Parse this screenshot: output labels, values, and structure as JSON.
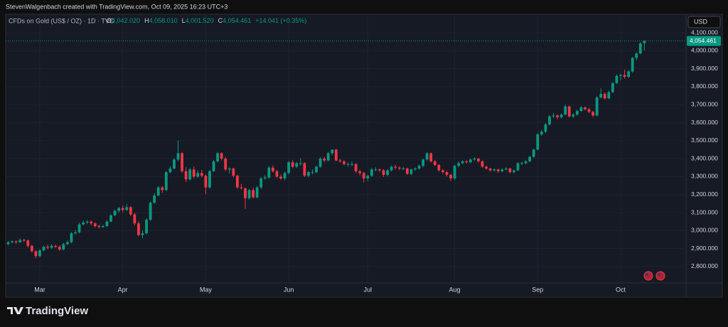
{
  "header": {
    "credit": "StevenWalgenbach created with TradingView.com, Oct 09, 2025 16:23 UTC+3"
  },
  "legend": {
    "symbol": "CFDs on Gold (US$ / OZ) · 1D · TVC",
    "ohlc": [
      {
        "label": "O",
        "value": "4,042.020"
      },
      {
        "label": "H",
        "value": "4,058.010"
      },
      {
        "label": "L",
        "value": "4,001.520"
      },
      {
        "label": "C",
        "value": "4,054.461"
      }
    ],
    "change": "+14.041 (+0.35%)"
  },
  "currency": "USD",
  "last_price_label": "4,054.461",
  "footer": {
    "brand": "TradingView"
  },
  "chart_data": {
    "type": "candlestick",
    "up_color": "#089981",
    "down_color": "#f23645",
    "grid": true,
    "ylim": [
      2709,
      4203
    ],
    "yticks": [
      {
        "value": 2800,
        "label": "2,800.000"
      },
      {
        "value": 2900,
        "label": "2,900.000"
      },
      {
        "value": 3000,
        "label": "3,000.000"
      },
      {
        "value": 3100,
        "label": "3,100.000"
      },
      {
        "value": 3200,
        "label": "3,200.000"
      },
      {
        "value": 3300,
        "label": "3,300.000"
      },
      {
        "value": 3400,
        "label": "3,400.000"
      },
      {
        "value": 3500,
        "label": "3,500.000"
      },
      {
        "value": 3600,
        "label": "3,600.000"
      },
      {
        "value": 3700,
        "label": "3,700.000"
      },
      {
        "value": 3800,
        "label": "3,800.000"
      },
      {
        "value": 3900,
        "label": "3,900.000"
      },
      {
        "value": 4000,
        "label": "4,000.000"
      },
      {
        "value": 4100,
        "label": "4,100.000"
      }
    ],
    "categories": [
      null,
      null,
      null,
      null,
      null,
      null,
      null,
      null,
      "Mar",
      null,
      null,
      null,
      null,
      null,
      null,
      null,
      null,
      null,
      null,
      null,
      null,
      null,
      null,
      null,
      null,
      null,
      null,
      null,
      null,
      "Apr",
      null,
      null,
      null,
      null,
      null,
      null,
      null,
      null,
      null,
      null,
      null,
      null,
      null,
      null,
      null,
      null,
      null,
      null,
      null,
      null,
      "May",
      null,
      null,
      null,
      null,
      null,
      null,
      null,
      null,
      null,
      null,
      null,
      null,
      null,
      null,
      null,
      null,
      null,
      null,
      null,
      null,
      "Jun",
      null,
      null,
      null,
      null,
      null,
      null,
      null,
      null,
      null,
      null,
      null,
      null,
      null,
      null,
      null,
      null,
      null,
      null,
      null,
      "Jul",
      null,
      null,
      null,
      null,
      null,
      null,
      null,
      null,
      null,
      null,
      null,
      null,
      null,
      null,
      null,
      null,
      null,
      null,
      null,
      null,
      null,
      "Aug",
      null,
      null,
      null,
      null,
      null,
      null,
      null,
      null,
      null,
      null,
      null,
      null,
      null,
      null,
      null,
      null,
      null,
      null,
      null,
      null,
      "Sep",
      null,
      null,
      null,
      null,
      null,
      null,
      null,
      null,
      null,
      null,
      null,
      null,
      null,
      null,
      null,
      null,
      null,
      null,
      null,
      null,
      "Oct",
      null,
      null,
      null,
      null,
      null,
      null
    ],
    "candles": [
      [
        2925,
        2942,
        2918,
        2935
      ],
      [
        2935,
        2946,
        2928,
        2940
      ],
      [
        2940,
        2945,
        2926,
        2935
      ],
      [
        2935,
        2956,
        2932,
        2948
      ],
      [
        2948,
        2954,
        2936,
        2945
      ],
      [
        2945,
        2950,
        2905,
        2915
      ],
      [
        2915,
        2922,
        2878,
        2885
      ],
      [
        2885,
        2892,
        2846,
        2858
      ],
      [
        2858,
        2896,
        2852,
        2890
      ],
      [
        2890,
        2918,
        2884,
        2910
      ],
      [
        2910,
        2922,
        2896,
        2905
      ],
      [
        2905,
        2925,
        2898,
        2915
      ],
      [
        2915,
        2922,
        2902,
        2910
      ],
      [
        2910,
        2918,
        2886,
        2895
      ],
      [
        2895,
        2932,
        2890,
        2925
      ],
      [
        2925,
        2945,
        2918,
        2935
      ],
      [
        2935,
        2992,
        2930,
        2985
      ],
      [
        2985,
        3004,
        2978,
        2990
      ],
      [
        2990,
        3045,
        2985,
        3035
      ],
      [
        3035,
        3057,
        3028,
        3045
      ],
      [
        3045,
        3058,
        3036,
        3050
      ],
      [
        3050,
        3056,
        3030,
        3040
      ],
      [
        3040,
        3046,
        3016,
        3025
      ],
      [
        3025,
        3034,
        3012,
        3020
      ],
      [
        3020,
        3032,
        3014,
        3025
      ],
      [
        3025,
        3058,
        3020,
        3050
      ],
      [
        3050,
        3092,
        3046,
        3085
      ],
      [
        3085,
        3118,
        3080,
        3110
      ],
      [
        3110,
        3132,
        3100,
        3125
      ],
      [
        3125,
        3140,
        3102,
        3115
      ],
      [
        3115,
        3148,
        3108,
        3130
      ],
      [
        3130,
        3136,
        3080,
        3090
      ],
      [
        3090,
        3098,
        3030,
        3040
      ],
      [
        3040,
        3052,
        2968,
        2975
      ],
      [
        2975,
        3000,
        2956,
        2985
      ],
      [
        2985,
        3068,
        2978,
        3060
      ],
      [
        3060,
        3162,
        3055,
        3155
      ],
      [
        3155,
        3208,
        3148,
        3195
      ],
      [
        3195,
        3248,
        3190,
        3240
      ],
      [
        3240,
        3248,
        3210,
        3225
      ],
      [
        3225,
        3332,
        3220,
        3325
      ],
      [
        3325,
        3358,
        3318,
        3345
      ],
      [
        3345,
        3402,
        3340,
        3395
      ],
      [
        3395,
        3500,
        3385,
        3430
      ],
      [
        3430,
        3438,
        3320,
        3330
      ],
      [
        3330,
        3352,
        3270,
        3285
      ],
      [
        3285,
        3350,
        3278,
        3340
      ],
      [
        3340,
        3356,
        3290,
        3300
      ],
      [
        3300,
        3335,
        3292,
        3320
      ],
      [
        3320,
        3338,
        3295,
        3305
      ],
      [
        3305,
        3312,
        3202,
        3240
      ],
      [
        3240,
        3338,
        3232,
        3330
      ],
      [
        3330,
        3392,
        3325,
        3385
      ],
      [
        3385,
        3438,
        3378,
        3430
      ],
      [
        3430,
        3436,
        3390,
        3400
      ],
      [
        3400,
        3410,
        3330,
        3340
      ],
      [
        3340,
        3352,
        3318,
        3345
      ],
      [
        3345,
        3350,
        3296,
        3305
      ],
      [
        3305,
        3312,
        3232,
        3240
      ],
      [
        3240,
        3260,
        3228,
        3235
      ],
      [
        3235,
        3240,
        3120,
        3180
      ],
      [
        3180,
        3232,
        3172,
        3225
      ],
      [
        3225,
        3238,
        3178,
        3185
      ],
      [
        3185,
        3248,
        3178,
        3240
      ],
      [
        3240,
        3298,
        3232,
        3290
      ],
      [
        3290,
        3308,
        3282,
        3295
      ],
      [
        3295,
        3358,
        3288,
        3350
      ],
      [
        3350,
        3362,
        3322,
        3330
      ],
      [
        3330,
        3338,
        3292,
        3300
      ],
      [
        3300,
        3312,
        3282,
        3290
      ],
      [
        3290,
        3328,
        3280,
        3320
      ],
      [
        3320,
        3388,
        3312,
        3380
      ],
      [
        3380,
        3392,
        3346,
        3355
      ],
      [
        3355,
        3382,
        3348,
        3375
      ],
      [
        3375,
        3402,
        3360,
        3375
      ],
      [
        3375,
        3380,
        3298,
        3305
      ],
      [
        3305,
        3332,
        3296,
        3325
      ],
      [
        3325,
        3340,
        3312,
        3325
      ],
      [
        3325,
        3362,
        3318,
        3355
      ],
      [
        3355,
        3408,
        3348,
        3400
      ],
      [
        3400,
        3410,
        3380,
        3390
      ],
      [
        3390,
        3438,
        3385,
        3430
      ],
      [
        3430,
        3452,
        3420,
        3450
      ],
      [
        3450,
        3455,
        3385,
        3390
      ],
      [
        3390,
        3400,
        3376,
        3385
      ],
      [
        3385,
        3392,
        3362,
        3370
      ],
      [
        3370,
        3378,
        3355,
        3370
      ],
      [
        3370,
        3385,
        3358,
        3370
      ],
      [
        3370,
        3376,
        3320,
        3330
      ],
      [
        3330,
        3338,
        3306,
        3320
      ],
      [
        3320,
        3326,
        3268,
        3290
      ],
      [
        3290,
        3312,
        3276,
        3305
      ],
      [
        3305,
        3348,
        3298,
        3340
      ],
      [
        3340,
        3352,
        3330,
        3340
      ],
      [
        3340,
        3346,
        3326,
        3335
      ],
      [
        3335,
        3342,
        3298,
        3310
      ],
      [
        3310,
        3342,
        3302,
        3335
      ],
      [
        3335,
        3362,
        3328,
        3355
      ],
      [
        3355,
        3365,
        3340,
        3350
      ],
      [
        3350,
        3358,
        3336,
        3345
      ],
      [
        3345,
        3354,
        3336,
        3345
      ],
      [
        3345,
        3350,
        3310,
        3315
      ],
      [
        3315,
        3346,
        3308,
        3340
      ],
      [
        3340,
        3352,
        3332,
        3345
      ],
      [
        3345,
        3368,
        3338,
        3360
      ],
      [
        3360,
        3400,
        3352,
        3395
      ],
      [
        3395,
        3438,
        3388,
        3430
      ],
      [
        3430,
        3434,
        3378,
        3385
      ],
      [
        3385,
        3392,
        3358,
        3365
      ],
      [
        3365,
        3370,
        3328,
        3335
      ],
      [
        3335,
        3342,
        3316,
        3325
      ],
      [
        3325,
        3332,
        3300,
        3310
      ],
      [
        3310,
        3316,
        3276,
        3290
      ],
      [
        3290,
        3366,
        3282,
        3360
      ],
      [
        3360,
        3384,
        3352,
        3375
      ],
      [
        3375,
        3392,
        3368,
        3385
      ],
      [
        3385,
        3392,
        3372,
        3380
      ],
      [
        3380,
        3400,
        3374,
        3395
      ],
      [
        3395,
        3408,
        3388,
        3400
      ],
      [
        3400,
        3404,
        3378,
        3385
      ],
      [
        3385,
        3390,
        3350,
        3355
      ],
      [
        3355,
        3362,
        3338,
        3345
      ],
      [
        3345,
        3350,
        3328,
        3335
      ],
      [
        3335,
        3346,
        3328,
        3340
      ],
      [
        3340,
        3344,
        3320,
        3330
      ],
      [
        3330,
        3346,
        3324,
        3340
      ],
      [
        3340,
        3352,
        3334,
        3345
      ],
      [
        3345,
        3350,
        3318,
        3325
      ],
      [
        3325,
        3340,
        3318,
        3335
      ],
      [
        3335,
        3380,
        3330,
        3375
      ],
      [
        3375,
        3384,
        3366,
        3375
      ],
      [
        3375,
        3392,
        3368,
        3385
      ],
      [
        3385,
        3416,
        3380,
        3410
      ],
      [
        3410,
        3456,
        3404,
        3450
      ],
      [
        3450,
        3542,
        3446,
        3535
      ],
      [
        3535,
        3560,
        3526,
        3550
      ],
      [
        3550,
        3598,
        3542,
        3590
      ],
      [
        3590,
        3642,
        3584,
        3635
      ],
      [
        3635,
        3655,
        3625,
        3640
      ],
      [
        3640,
        3648,
        3618,
        3630
      ],
      [
        3630,
        3652,
        3622,
        3645
      ],
      [
        3645,
        3700,
        3640,
        3690
      ],
      [
        3690,
        3696,
        3628,
        3635
      ],
      [
        3635,
        3652,
        3626,
        3645
      ],
      [
        3645,
        3672,
        3638,
        3665
      ],
      [
        3665,
        3692,
        3660,
        3685
      ],
      [
        3685,
        3690,
        3668,
        3675
      ],
      [
        3675,
        3682,
        3652,
        3660
      ],
      [
        3660,
        3666,
        3632,
        3640
      ],
      [
        3640,
        3748,
        3634,
        3740
      ],
      [
        3740,
        3790,
        3735,
        3760
      ],
      [
        3760,
        3768,
        3728,
        3735
      ],
      [
        3735,
        3778,
        3730,
        3770
      ],
      [
        3770,
        3826,
        3764,
        3820
      ],
      [
        3820,
        3868,
        3815,
        3860
      ],
      [
        3860,
        3872,
        3835,
        3865
      ],
      [
        3865,
        3895,
        3845,
        3855
      ],
      [
        3855,
        3892,
        3848,
        3885
      ],
      [
        3885,
        3965,
        3878,
        3960
      ],
      [
        3960,
        3992,
        3948,
        3985
      ],
      [
        3985,
        4048,
        3980,
        4040.42
      ],
      [
        4042.02,
        4058.01,
        4001.52,
        4054.461
      ]
    ]
  }
}
